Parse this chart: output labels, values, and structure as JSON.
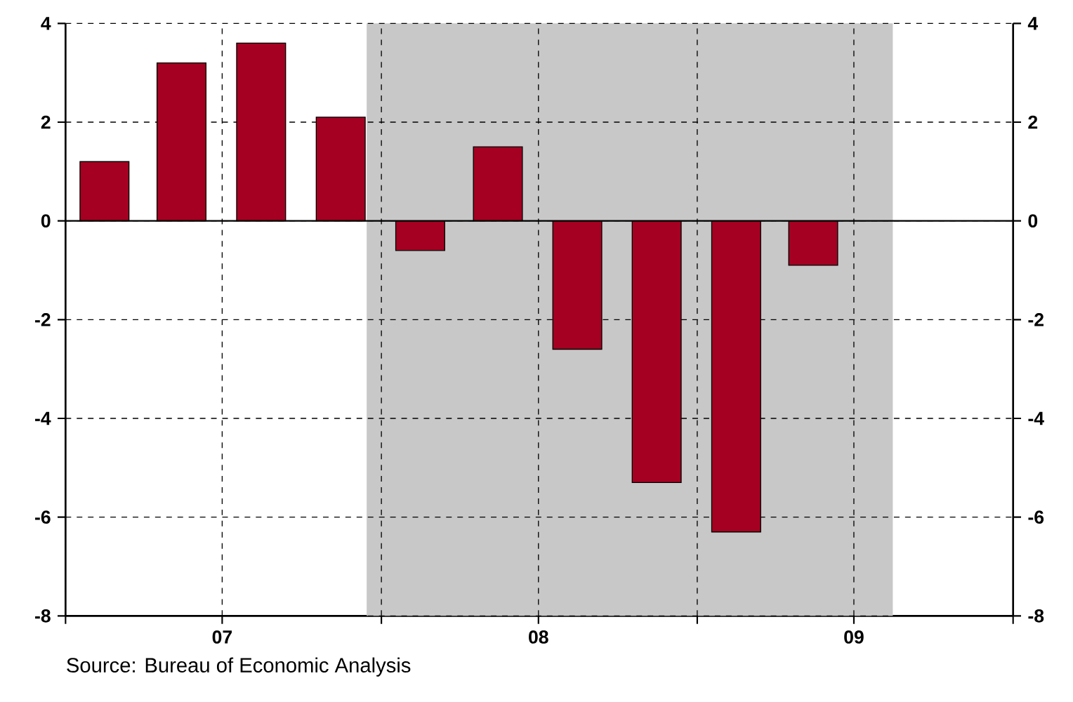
{
  "chart_data": {
    "type": "bar",
    "x": [
      "2007-02-15",
      "2007-05-15",
      "2007-08-15",
      "2007-11-15",
      "2008-02-15",
      "2008-05-15",
      "2008-08-15",
      "2008-11-15",
      "2009-02-15",
      "2009-05-15"
    ],
    "values": [
      1.2,
      3.2,
      3.6,
      2.1,
      -0.6,
      1.5,
      -2.6,
      -5.3,
      -6.3,
      -0.9
    ],
    "color": "#a50021",
    "xlim": [
      "2007-01-01",
      "2010-01-01"
    ],
    "xticks": [
      {
        "value": "2007-01-01",
        "label": null
      },
      {
        "value": "2007-07-01",
        "label": "07"
      },
      {
        "value": "2008-01-01",
        "label": null
      },
      {
        "value": "2008-07-01",
        "label": "08"
      },
      {
        "value": "2009-01-01",
        "label": null
      },
      {
        "value": "2009-07-01",
        "label": "09"
      },
      {
        "value": "2010-01-01",
        "label": null
      }
    ],
    "ylim": [
      -8,
      4
    ],
    "yticks": [
      -8,
      -6,
      -4,
      -2,
      0,
      2,
      4
    ],
    "y2lim": [
      -8,
      4
    ],
    "y2ticks": [
      -8,
      -6,
      -4,
      -2,
      0,
      2,
      4
    ],
    "grid": true,
    "bands": [
      {
        "axis": "x",
        "from": "2007-12-15",
        "to": "2009-08-15",
        "color": "#c8c8c8"
      }
    ],
    "ref_lines": [
      {
        "axis": "y",
        "value": 0,
        "color": "#000000"
      }
    ],
    "annotations": [
      "Source:  Bureau of Economic Analysis"
    ]
  }
}
